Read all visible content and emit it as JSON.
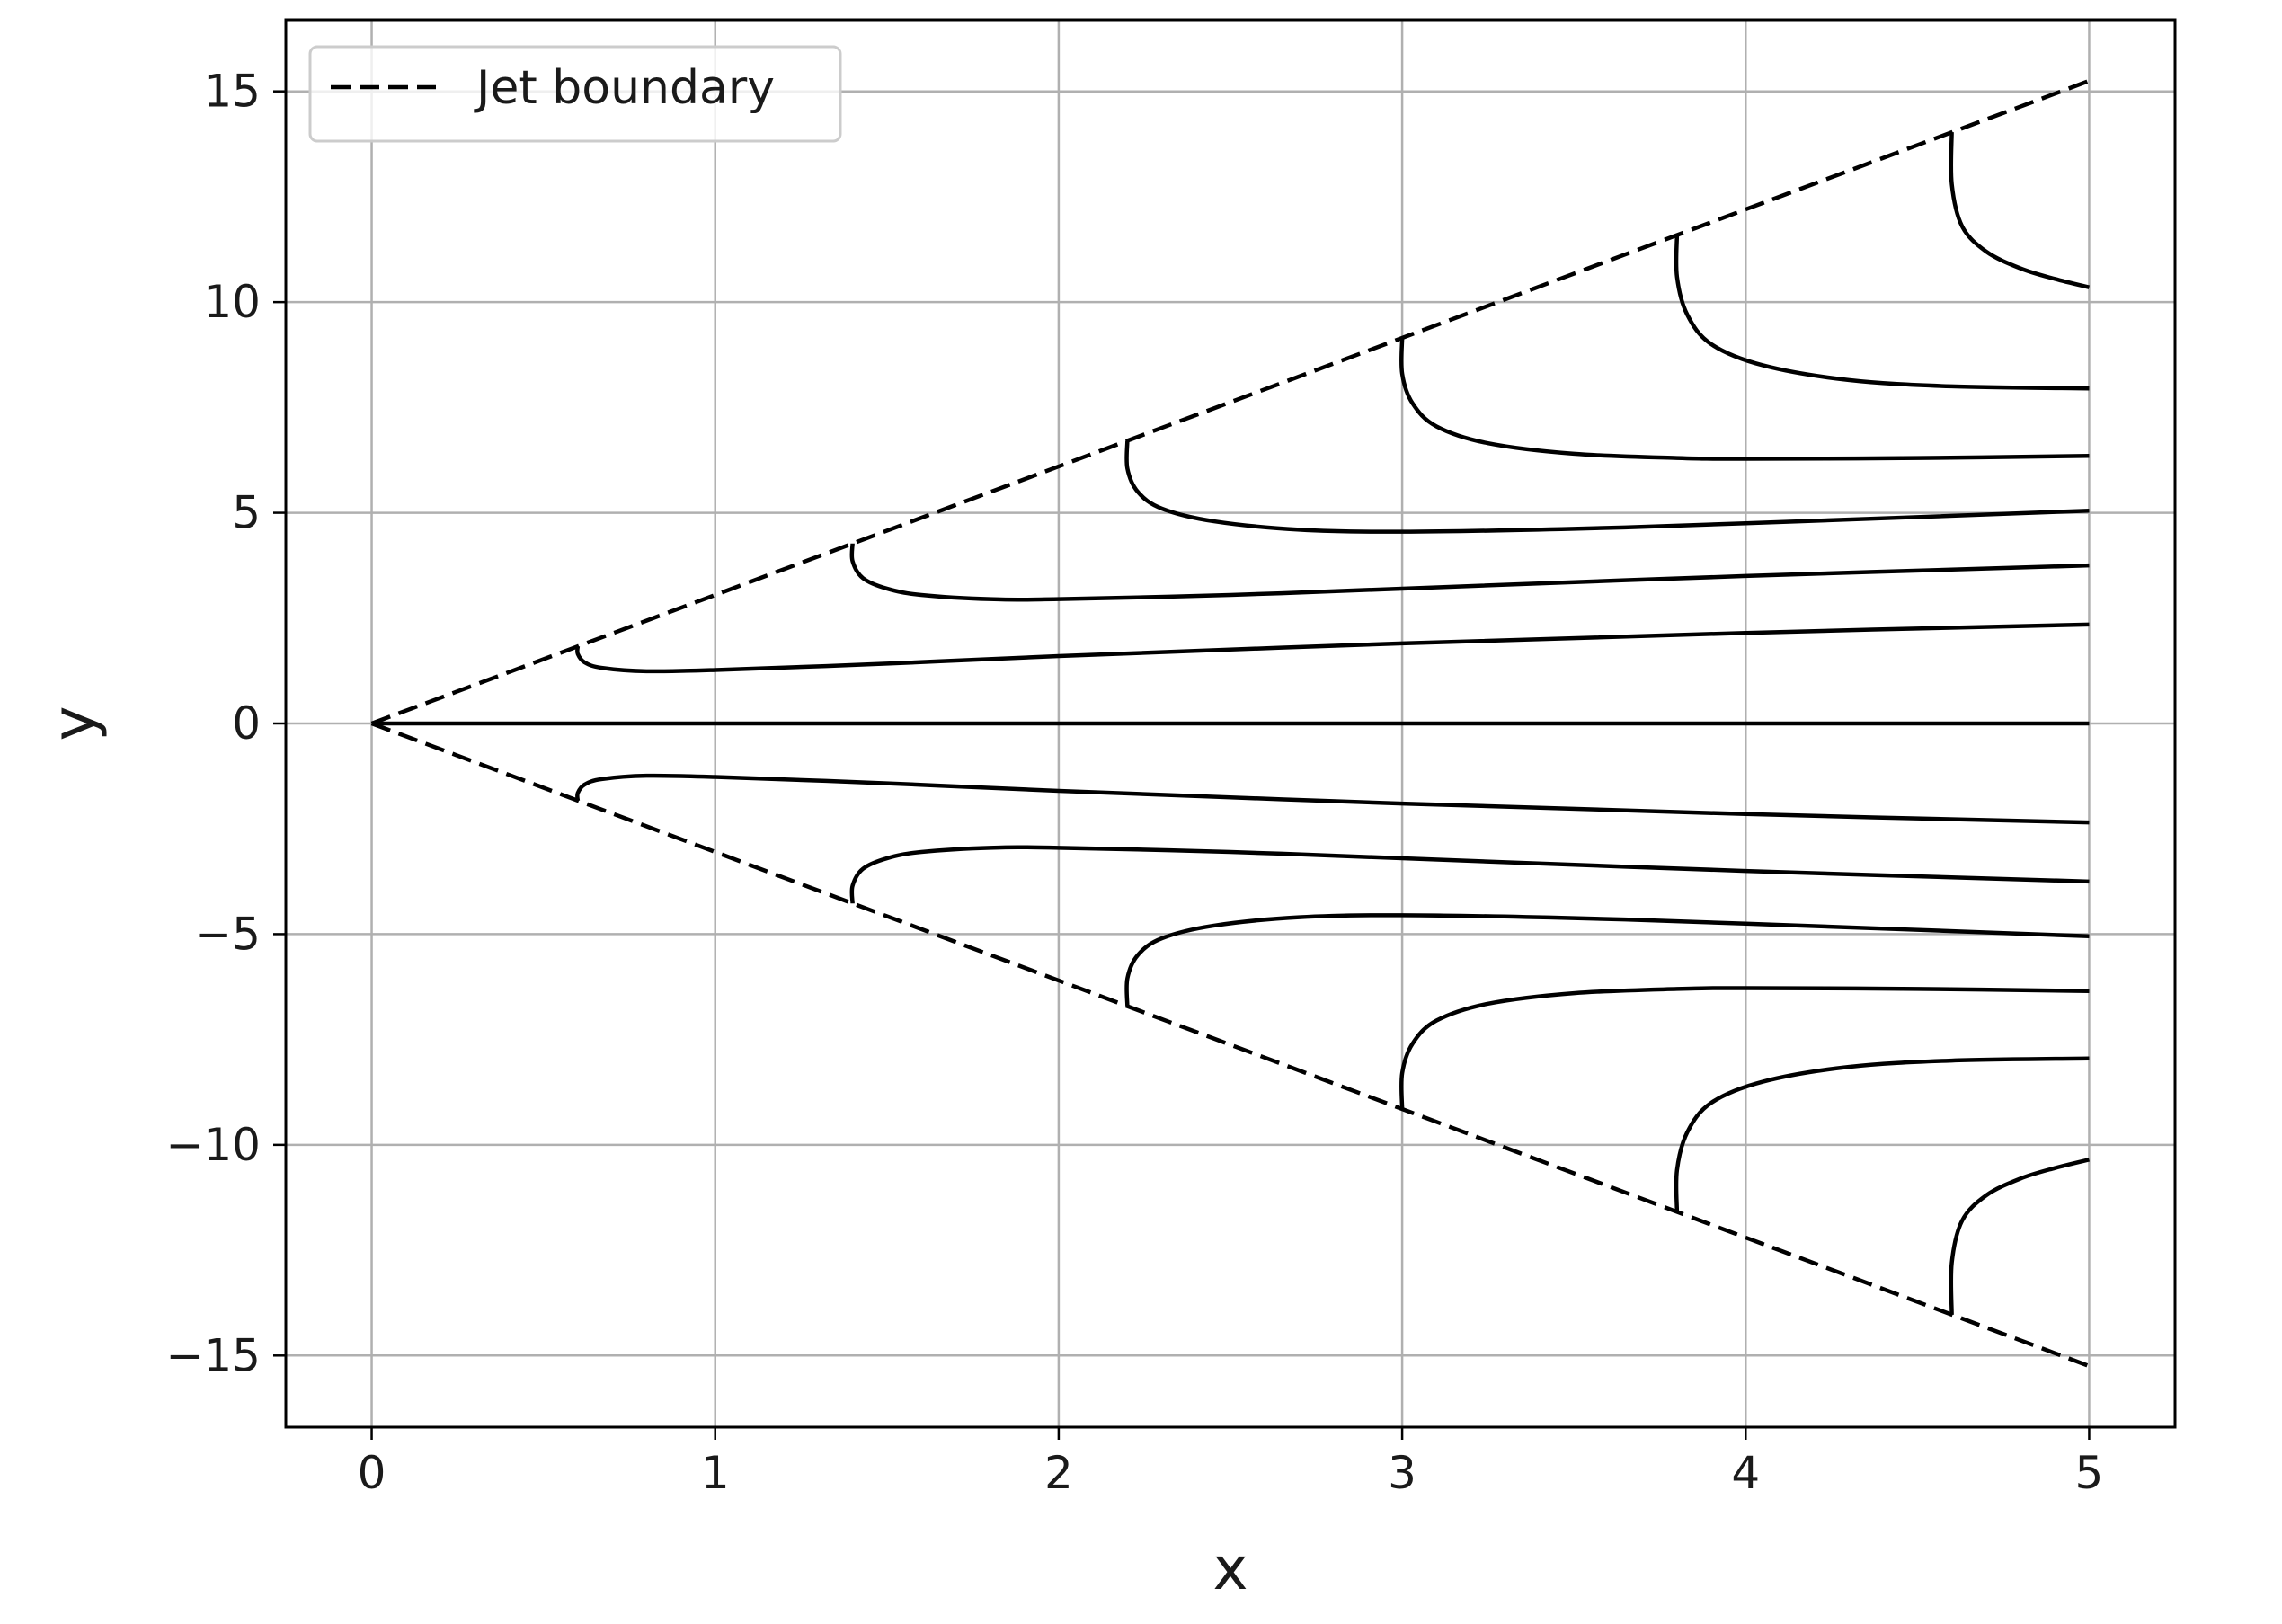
{
  "chart_data": {
    "type": "line",
    "title": "",
    "xlabel": "x",
    "ylabel": "y",
    "xlim": [
      -0.25,
      5.25
    ],
    "ylim": [
      -16.7,
      16.7
    ],
    "xticks": [
      0,
      1,
      2,
      3,
      4,
      5
    ],
    "xtick_labels": [
      "0",
      "1",
      "2",
      "3",
      "4",
      "5"
    ],
    "yticks": [
      -15,
      -10,
      -5,
      0,
      5,
      10,
      15
    ],
    "ytick_labels": [
      "−15",
      "−10",
      "−5",
      "0",
      "5",
      "10",
      "15"
    ],
    "grid": true,
    "legend": {
      "location": "upper left",
      "entries": [
        {
          "label": "Jet boundary",
          "style": "dashed",
          "color": "#000000"
        }
      ]
    },
    "boundary": {
      "name": "Jet boundary",
      "style": "dashed",
      "upper": [
        [
          0,
          0
        ],
        [
          5,
          15.25
        ]
      ],
      "lower": [
        [
          0,
          0
        ],
        [
          5,
          -15.25
        ]
      ]
    },
    "streamlines": [
      {
        "x": [
          0,
          5
        ],
        "y": [
          0,
          0
        ]
      },
      {
        "x": [
          0.6,
          0.6,
          0.62,
          0.67,
          0.8,
          1.0,
          1.5,
          2.0,
          3.0,
          4.0,
          5.0
        ],
        "y": [
          1.83,
          1.65,
          1.45,
          1.32,
          1.24,
          1.27,
          1.42,
          1.6,
          1.9,
          2.15,
          2.35
        ]
      },
      {
        "x": [
          1.4,
          1.4,
          1.43,
          1.5,
          1.6,
          1.8,
          2.0,
          2.5,
          3.0,
          4.0,
          5.0
        ],
        "y": [
          4.27,
          3.85,
          3.45,
          3.2,
          3.05,
          2.95,
          2.95,
          3.05,
          3.2,
          3.5,
          3.75
        ]
      },
      {
        "x": [
          2.2,
          2.2,
          2.23,
          2.3,
          2.45,
          2.7,
          3.0,
          3.5,
          4.0,
          5.0
        ],
        "y": [
          6.71,
          6.05,
          5.5,
          5.1,
          4.8,
          4.6,
          4.55,
          4.62,
          4.75,
          5.05
        ]
      },
      {
        "x": [
          3.0,
          3.0,
          3.03,
          3.1,
          3.25,
          3.5,
          3.8,
          4.0,
          4.5,
          5.0
        ],
        "y": [
          9.15,
          8.3,
          7.6,
          7.05,
          6.65,
          6.4,
          6.3,
          6.28,
          6.3,
          6.35
        ]
      },
      {
        "x": [
          3.8,
          3.8,
          3.83,
          3.9,
          4.05,
          4.3,
          4.6,
          5.0
        ],
        "y": [
          11.59,
          10.6,
          9.7,
          9.0,
          8.5,
          8.15,
          8.0,
          7.95
        ]
      },
      {
        "x": [
          4.6,
          4.6,
          4.63,
          4.7,
          4.8,
          4.9,
          5.0
        ],
        "y": [
          14.03,
          12.8,
          11.8,
          11.2,
          10.8,
          10.55,
          10.35
        ]
      },
      {
        "x": [
          0.6,
          0.6,
          0.62,
          0.67,
          0.8,
          1.0,
          1.5,
          2.0,
          3.0,
          4.0,
          5.0
        ],
        "y": [
          -1.83,
          -1.65,
          -1.45,
          -1.32,
          -1.24,
          -1.27,
          -1.42,
          -1.6,
          -1.9,
          -2.15,
          -2.35
        ]
      },
      {
        "x": [
          1.4,
          1.4,
          1.43,
          1.5,
          1.6,
          1.8,
          2.0,
          2.5,
          3.0,
          4.0,
          5.0
        ],
        "y": [
          -4.27,
          -3.85,
          -3.45,
          -3.2,
          -3.05,
          -2.95,
          -2.95,
          -3.05,
          -3.2,
          -3.5,
          -3.75
        ]
      },
      {
        "x": [
          2.2,
          2.2,
          2.23,
          2.3,
          2.45,
          2.7,
          3.0,
          3.5,
          4.0,
          5.0
        ],
        "y": [
          -6.71,
          -6.05,
          -5.5,
          -5.1,
          -4.8,
          -4.6,
          -4.55,
          -4.62,
          -4.75,
          -5.05
        ]
      },
      {
        "x": [
          3.0,
          3.0,
          3.03,
          3.1,
          3.25,
          3.5,
          3.8,
          4.0,
          4.5,
          5.0
        ],
        "y": [
          -9.15,
          -8.3,
          -7.6,
          -7.05,
          -6.65,
          -6.4,
          -6.3,
          -6.28,
          -6.3,
          -6.35
        ]
      },
      {
        "x": [
          3.8,
          3.8,
          3.83,
          3.9,
          4.05,
          4.3,
          4.6,
          5.0
        ],
        "y": [
          -11.59,
          -10.6,
          -9.7,
          -9.0,
          -8.5,
          -8.15,
          -8.0,
          -7.95
        ]
      },
      {
        "x": [
          4.6,
          4.6,
          4.63,
          4.7,
          4.8,
          4.9,
          5.0
        ],
        "y": [
          -14.03,
          -12.8,
          -11.8,
          -11.2,
          -10.8,
          -10.55,
          -10.35
        ]
      }
    ]
  }
}
